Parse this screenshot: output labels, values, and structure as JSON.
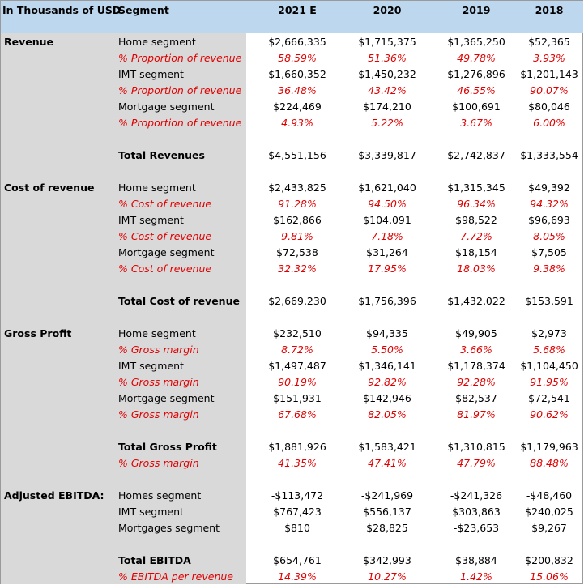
{
  "header": [
    "In Thousands of USD",
    "Segment",
    "2021 E",
    "2020",
    "2019",
    "2018"
  ],
  "accent_color": "#e00000",
  "sections": [
    {
      "label": "Revenue",
      "groups": [
        [
          {
            "segment": "Home segment",
            "values": [
              "$2,666,335",
              "$1,715,375",
              "$1,365,250",
              "$52,365"
            ]
          },
          {
            "segment": "% Proportion of revenue",
            "accent": true,
            "values": [
              "58.59%",
              "51.36%",
              "49.78%",
              "3.93%"
            ]
          },
          {
            "segment": "IMT segment",
            "values": [
              "$1,660,352",
              "$1,450,232",
              "$1,276,896",
              "$1,201,143"
            ]
          },
          {
            "segment": "% Proportion of revenue",
            "accent": true,
            "values": [
              "36.48%",
              "43.42%",
              "46.55%",
              "90.07%"
            ]
          },
          {
            "segment": "Mortgage segment",
            "values": [
              "$224,469",
              "$174,210",
              "$100,691",
              "$80,046"
            ]
          },
          {
            "segment": "% Proportion of revenue",
            "accent": true,
            "values": [
              "4.93%",
              "5.22%",
              "3.67%",
              "6.00%"
            ]
          }
        ],
        [
          {
            "segment": "Total Revenues",
            "total": true,
            "values": [
              "$4,551,156",
              "$3,339,817",
              "$2,742,837",
              "$1,333,554"
            ]
          }
        ]
      ]
    },
    {
      "label": "Cost of revenue",
      "groups": [
        [
          {
            "segment": "Home segment",
            "values": [
              "$2,433,825",
              "$1,621,040",
              "$1,315,345",
              "$49,392"
            ]
          },
          {
            "segment": "% Cost of revenue",
            "accent": true,
            "values": [
              "91.28%",
              "94.50%",
              "96.34%",
              "94.32%"
            ]
          },
          {
            "segment": "IMT segment",
            "values": [
              "$162,866",
              "$104,091",
              "$98,522",
              "$96,693"
            ]
          },
          {
            "segment": "% Cost of revenue",
            "accent": true,
            "values": [
              "9.81%",
              "7.18%",
              "7.72%",
              "8.05%"
            ]
          },
          {
            "segment": "Mortgage segment",
            "values": [
              "$72,538",
              "$31,264",
              "$18,154",
              "$7,505"
            ]
          },
          {
            "segment": "% Cost of revenue",
            "accent": true,
            "values": [
              "32.32%",
              "17.95%",
              "18.03%",
              "9.38%"
            ]
          }
        ],
        [
          {
            "segment": "Total Cost of revenue",
            "total": true,
            "values": [
              "$2,669,230",
              "$1,756,396",
              "$1,432,022",
              "$153,591"
            ]
          }
        ]
      ]
    },
    {
      "label": "Gross Profit",
      "groups": [
        [
          {
            "segment": "Home segment",
            "values": [
              "$232,510",
              "$94,335",
              "$49,905",
              "$2,973"
            ]
          },
          {
            "segment": "% Gross margin",
            "accent": true,
            "values": [
              "8.72%",
              "5.50%",
              "3.66%",
              "5.68%"
            ]
          },
          {
            "segment": "IMT segment",
            "values": [
              "$1,497,487",
              "$1,346,141",
              "$1,178,374",
              "$1,104,450"
            ]
          },
          {
            "segment": "% Gross margin",
            "accent": true,
            "values": [
              "90.19%",
              "92.82%",
              "92.28%",
              "91.95%"
            ]
          },
          {
            "segment": "Mortgage segment",
            "values": [
              "$151,931",
              "$142,946",
              "$82,537",
              "$72,541"
            ]
          },
          {
            "segment": "% Gross margin",
            "accent": true,
            "values": [
              "67.68%",
              "82.05%",
              "81.97%",
              "90.62%"
            ]
          }
        ],
        [
          {
            "segment": "Total Gross Profit",
            "total": true,
            "values": [
              "$1,881,926",
              "$1,583,421",
              "$1,310,815",
              "$1,179,963"
            ]
          },
          {
            "segment": "% Gross margin",
            "accent": true,
            "values": [
              "41.35%",
              "47.41%",
              "47.79%",
              "88.48%"
            ]
          }
        ]
      ]
    },
    {
      "label": "Adjusted EBITDA:",
      "groups": [
        [
          {
            "segment": "Homes segment",
            "values": [
              "-$113,472",
              "-$241,969",
              "-$241,326",
              "-$48,460"
            ]
          },
          {
            "segment": "IMT segment",
            "values": [
              "$767,423",
              "$556,137",
              "$303,863",
              "$240,025"
            ]
          },
          {
            "segment": "Mortgages segment",
            "values": [
              "$810",
              "$28,825",
              "-$23,653",
              "$9,267"
            ]
          }
        ],
        [
          {
            "segment": "Total EBITDA",
            "total": true,
            "values": [
              "$654,761",
              "$342,993",
              "$38,884",
              "$200,832"
            ]
          },
          {
            "segment": "% EBITDA per revenue",
            "accent": true,
            "values": [
              "14.39%",
              "10.27%",
              "1.42%",
              "15.06%"
            ]
          }
        ]
      ]
    }
  ]
}
